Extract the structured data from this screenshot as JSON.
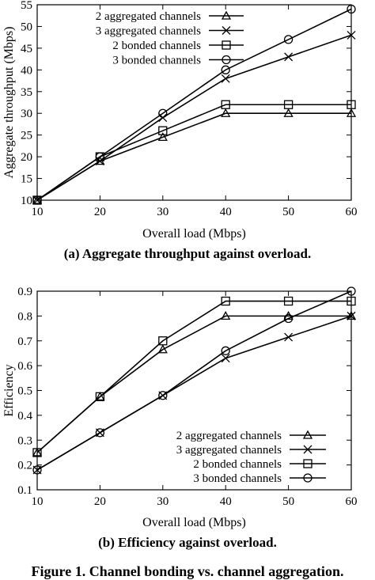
{
  "chart_data": [
    {
      "type": "line",
      "title": "",
      "caption": "(a) Aggregate throughput against overload.",
      "xlabel": "Overall load (Mbps)",
      "ylabel": "Aggregate throughput (Mbps)",
      "xlim": [
        10,
        60
      ],
      "ylim": [
        10,
        55
      ],
      "xticks": [
        10,
        20,
        30,
        40,
        50,
        60
      ],
      "yticks": [
        10,
        15,
        20,
        25,
        30,
        35,
        40,
        45,
        50,
        55
      ],
      "x": [
        10,
        20,
        30,
        40,
        50,
        60
      ],
      "grid": false,
      "legend_position": "top-left",
      "series": [
        {
          "name": "2 aggregated channels",
          "marker": "triangle",
          "values": [
            10,
            19,
            24.5,
            30,
            30,
            30
          ]
        },
        {
          "name": "3 aggregated channels",
          "marker": "x",
          "values": [
            10,
            19,
            29,
            38,
            43,
            48
          ]
        },
        {
          "name": "2 bonded channels",
          "marker": "square",
          "values": [
            10,
            20,
            26,
            32,
            32,
            32
          ]
        },
        {
          "name": "3 bonded channels",
          "marker": "circle",
          "values": [
            10,
            20,
            30,
            40,
            47,
            54
          ]
        }
      ]
    },
    {
      "type": "line",
      "title": "",
      "caption": "(b) Efficiency against overload.",
      "xlabel": "Overall load (Mbps)",
      "ylabel": "Efficiency",
      "xlim": [
        10,
        60
      ],
      "ylim": [
        0.1,
        0.9
      ],
      "xticks": [
        10,
        20,
        30,
        40,
        50,
        60
      ],
      "yticks": [
        0.1,
        0.2,
        0.3,
        0.4,
        0.5,
        0.6,
        0.7,
        0.8,
        0.9
      ],
      "x": [
        10,
        20,
        30,
        40,
        50,
        60
      ],
      "grid": false,
      "legend_position": "bottom-right",
      "series": [
        {
          "name": "2 aggregated channels",
          "marker": "triangle",
          "values": [
            0.25,
            0.475,
            0.665,
            0.8,
            0.8,
            0.8
          ]
        },
        {
          "name": "3 aggregated channels",
          "marker": "x",
          "values": [
            0.18,
            0.33,
            0.48,
            0.63,
            0.715,
            0.8
          ]
        },
        {
          "name": "2 bonded channels",
          "marker": "square",
          "values": [
            0.25,
            0.475,
            0.7,
            0.86,
            0.86,
            0.86
          ]
        },
        {
          "name": "3 bonded channels",
          "marker": "circle",
          "values": [
            0.18,
            0.33,
            0.48,
            0.66,
            0.79,
            0.9
          ]
        }
      ]
    }
  ],
  "figure_caption": "Figure 1. Channel bonding vs. channel aggregation."
}
